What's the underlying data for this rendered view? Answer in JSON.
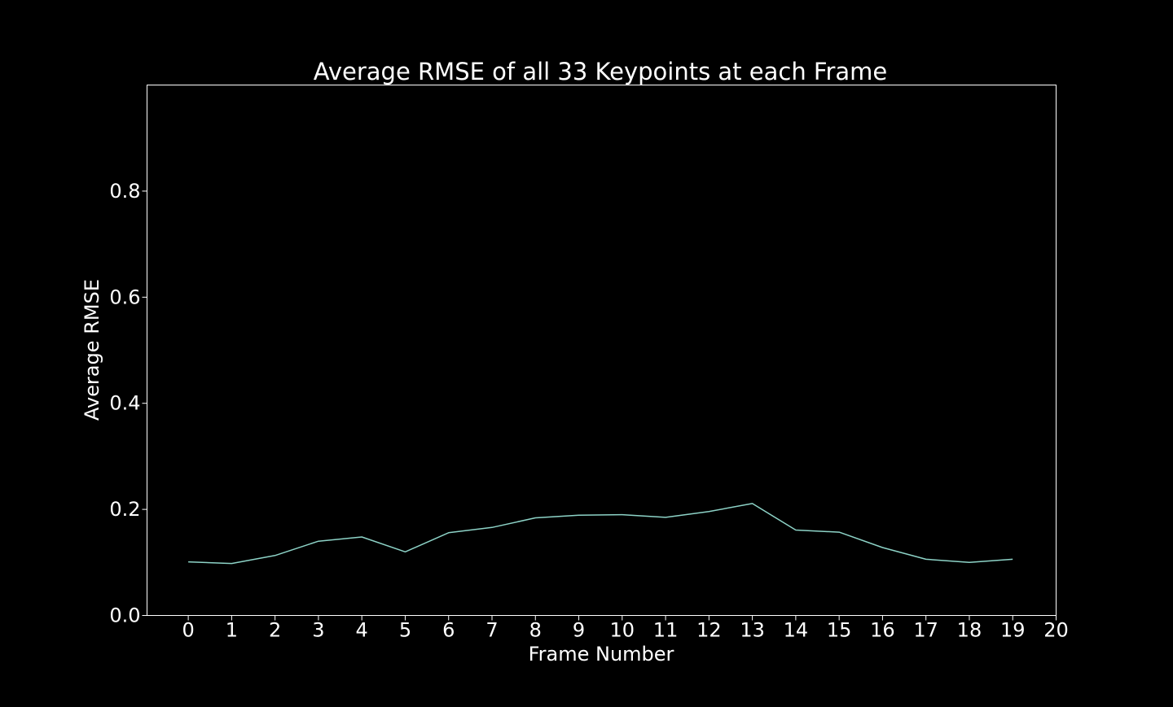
{
  "chart_data": {
    "type": "line",
    "title": "Average RMSE of all 33 Keypoints at each Frame",
    "xlabel": "Frame Number",
    "ylabel": "Average RMSE",
    "xlim": [
      -0.95,
      20
    ],
    "ylim": [
      0,
      1
    ],
    "x_ticks": [
      0,
      1,
      2,
      3,
      4,
      5,
      6,
      7,
      8,
      9,
      10,
      11,
      12,
      13,
      14,
      15,
      16,
      17,
      18,
      19,
      20
    ],
    "x_tick_labels": [
      "0",
      "1",
      "2",
      "3",
      "4",
      "5",
      "6",
      "7",
      "8",
      "9",
      "10",
      "11",
      "12",
      "13",
      "14",
      "15",
      "16",
      "17",
      "18",
      "19",
      "20"
    ],
    "y_ticks": [
      0.0,
      0.2,
      0.4,
      0.6,
      0.8
    ],
    "y_tick_labels": [
      "0.0",
      "0.2",
      "0.4",
      "0.6",
      "0.8"
    ],
    "grid": false,
    "series": [
      {
        "x": [
          0,
          1,
          2,
          3,
          4,
          5,
          6,
          7,
          8,
          9,
          10,
          11,
          12,
          13,
          14,
          15,
          16,
          17,
          18,
          19
        ],
        "values": [
          0.101,
          0.098,
          0.113,
          0.14,
          0.148,
          0.12,
          0.156,
          0.166,
          0.184,
          0.189,
          0.19,
          0.185,
          0.196,
          0.211,
          0.161,
          0.157,
          0.128,
          0.106,
          0.1,
          0.106
        ],
        "color": "#8dd3c7"
      }
    ],
    "colors": {
      "background": "#000000",
      "axes": "#ffffff",
      "text": "#ffffff"
    }
  }
}
